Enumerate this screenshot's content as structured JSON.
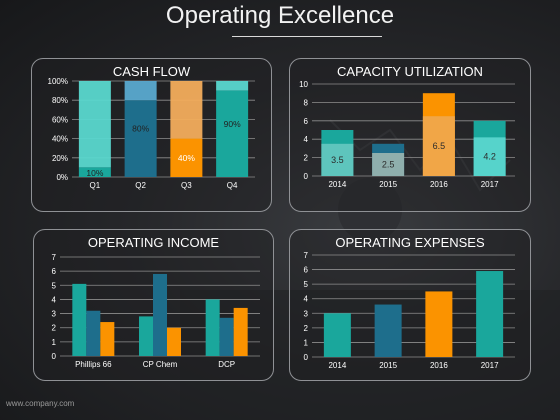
{
  "title": "Operating Excellence",
  "footer": "www.company.com",
  "colors": {
    "teal": "#1aa79c",
    "teal_light": "#5ad8cf",
    "blue": "#1e6e8c",
    "blue_light": "#5aaad0",
    "orange": "#fb9300",
    "orange_light": "#f3ad5c",
    "grid": "#8e8e8e",
    "text": "#ffffff"
  },
  "chart_data": [
    {
      "type": "bar",
      "title": "CASH FLOW",
      "stacked_percent": true,
      "categories": [
        "Q1",
        "Q2",
        "Q3",
        "Q4"
      ],
      "values": [
        10,
        80,
        40,
        90
      ],
      "value_labels": [
        "10%",
        "80%",
        "40%",
        "90%"
      ],
      "ylim": [
        0,
        100
      ],
      "yticks": [
        "0%",
        "20%",
        "40%",
        "60%",
        "80%",
        "100%"
      ],
      "grid": true
    },
    {
      "type": "bar",
      "title": "CAPACITY UTILIZATION",
      "categories": [
        "2014",
        "2015",
        "2016",
        "2017"
      ],
      "totals": [
        5,
        3.5,
        9,
        6
      ],
      "values": [
        3.5,
        2.5,
        6.5,
        4.2
      ],
      "value_labels": [
        "3.5",
        "2.5",
        "6.5",
        "4.2"
      ],
      "ylim": [
        0,
        10
      ],
      "yticks": [
        "0",
        "2",
        "4",
        "6",
        "8",
        "10"
      ],
      "grid": true
    },
    {
      "type": "bar",
      "title": "OPERATING INCOME",
      "categories": [
        "Phillips 66",
        "CP Chem",
        "DCP"
      ],
      "series": [
        {
          "values": [
            5.1,
            2.8,
            4.0
          ]
        },
        {
          "values": [
            3.2,
            5.8,
            2.7
          ]
        },
        {
          "values": [
            2.4,
            2.0,
            3.4
          ]
        }
      ],
      "ylim": [
        0,
        7
      ],
      "yticks": [
        "0",
        "1",
        "2",
        "3",
        "4",
        "5",
        "6",
        "7"
      ],
      "grid": true
    },
    {
      "type": "bar",
      "title": "OPERATING EXPENSES",
      "categories": [
        "2014",
        "2015",
        "2016",
        "2017"
      ],
      "values": [
        3.0,
        3.6,
        4.5,
        5.9
      ],
      "ylim": [
        0,
        7
      ],
      "yticks": [
        "0",
        "1",
        "2",
        "3",
        "4",
        "5",
        "6",
        "7"
      ],
      "grid": true
    }
  ]
}
